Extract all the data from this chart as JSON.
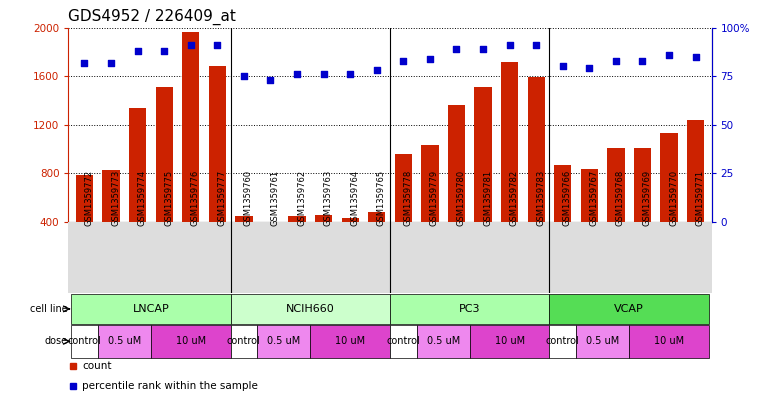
{
  "title": "GDS4952 / 226409_at",
  "samples": [
    "GSM1359772",
    "GSM1359773",
    "GSM1359774",
    "GSM1359775",
    "GSM1359776",
    "GSM1359777",
    "GSM1359760",
    "GSM1359761",
    "GSM1359762",
    "GSM1359763",
    "GSM1359764",
    "GSM1359765",
    "GSM1359778",
    "GSM1359779",
    "GSM1359780",
    "GSM1359781",
    "GSM1359782",
    "GSM1359783",
    "GSM1359766",
    "GSM1359767",
    "GSM1359768",
    "GSM1359769",
    "GSM1359770",
    "GSM1359771"
  ],
  "counts": [
    790,
    830,
    1340,
    1510,
    1960,
    1680,
    450,
    390,
    450,
    460,
    430,
    480,
    960,
    1030,
    1360,
    1510,
    1720,
    1590,
    870,
    840,
    1010,
    1010,
    1130,
    1240
  ],
  "percentile_ranks": [
    82,
    82,
    88,
    88,
    91,
    91,
    75,
    73,
    76,
    76,
    76,
    78,
    83,
    84,
    89,
    89,
    91,
    91,
    80,
    79,
    83,
    83,
    86,
    85
  ],
  "bar_color": "#cc2200",
  "dot_color": "#0000cc",
  "ylim_left": [
    400,
    2000
  ],
  "ylim_right": [
    0,
    100
  ],
  "yticks_left": [
    400,
    800,
    1200,
    1600,
    2000
  ],
  "yticks_right": [
    0,
    25,
    50,
    75,
    100
  ],
  "background_color": "#ffffff",
  "title_fontsize": 11,
  "axis_label_color_left": "#cc2200",
  "axis_label_color_right": "#0000cc",
  "cell_line_data": [
    {
      "name": "LNCAP",
      "start": 0,
      "end": 6,
      "color": "#aaffaa"
    },
    {
      "name": "NCIH660",
      "start": 6,
      "end": 12,
      "color": "#ccffcc"
    },
    {
      "name": "PC3",
      "start": 12,
      "end": 18,
      "color": "#aaffaa"
    },
    {
      "name": "VCAP",
      "start": 18,
      "end": 24,
      "color": "#55dd55"
    }
  ],
  "dose_pattern": [
    {
      "start": 0,
      "end": 1,
      "label": "control",
      "color": "#ffffff"
    },
    {
      "start": 1,
      "end": 3,
      "label": "0.5 uM",
      "color": "#ee88ee"
    },
    {
      "start": 3,
      "end": 6,
      "label": "10 uM",
      "color": "#dd44cc"
    },
    {
      "start": 6,
      "end": 7,
      "label": "control",
      "color": "#ffffff"
    },
    {
      "start": 7,
      "end": 9,
      "label": "0.5 uM",
      "color": "#ee88ee"
    },
    {
      "start": 9,
      "end": 12,
      "label": "10 uM",
      "color": "#dd44cc"
    },
    {
      "start": 12,
      "end": 13,
      "label": "control",
      "color": "#ffffff"
    },
    {
      "start": 13,
      "end": 15,
      "label": "0.5 uM",
      "color": "#ee88ee"
    },
    {
      "start": 15,
      "end": 18,
      "label": "10 uM",
      "color": "#dd44cc"
    },
    {
      "start": 18,
      "end": 19,
      "label": "control",
      "color": "#ffffff"
    },
    {
      "start": 19,
      "end": 21,
      "label": "0.5 uM",
      "color": "#ee88ee"
    },
    {
      "start": 21,
      "end": 24,
      "label": "10 uM",
      "color": "#dd44cc"
    }
  ],
  "group_separators": [
    5.5,
    11.5,
    17.5
  ]
}
